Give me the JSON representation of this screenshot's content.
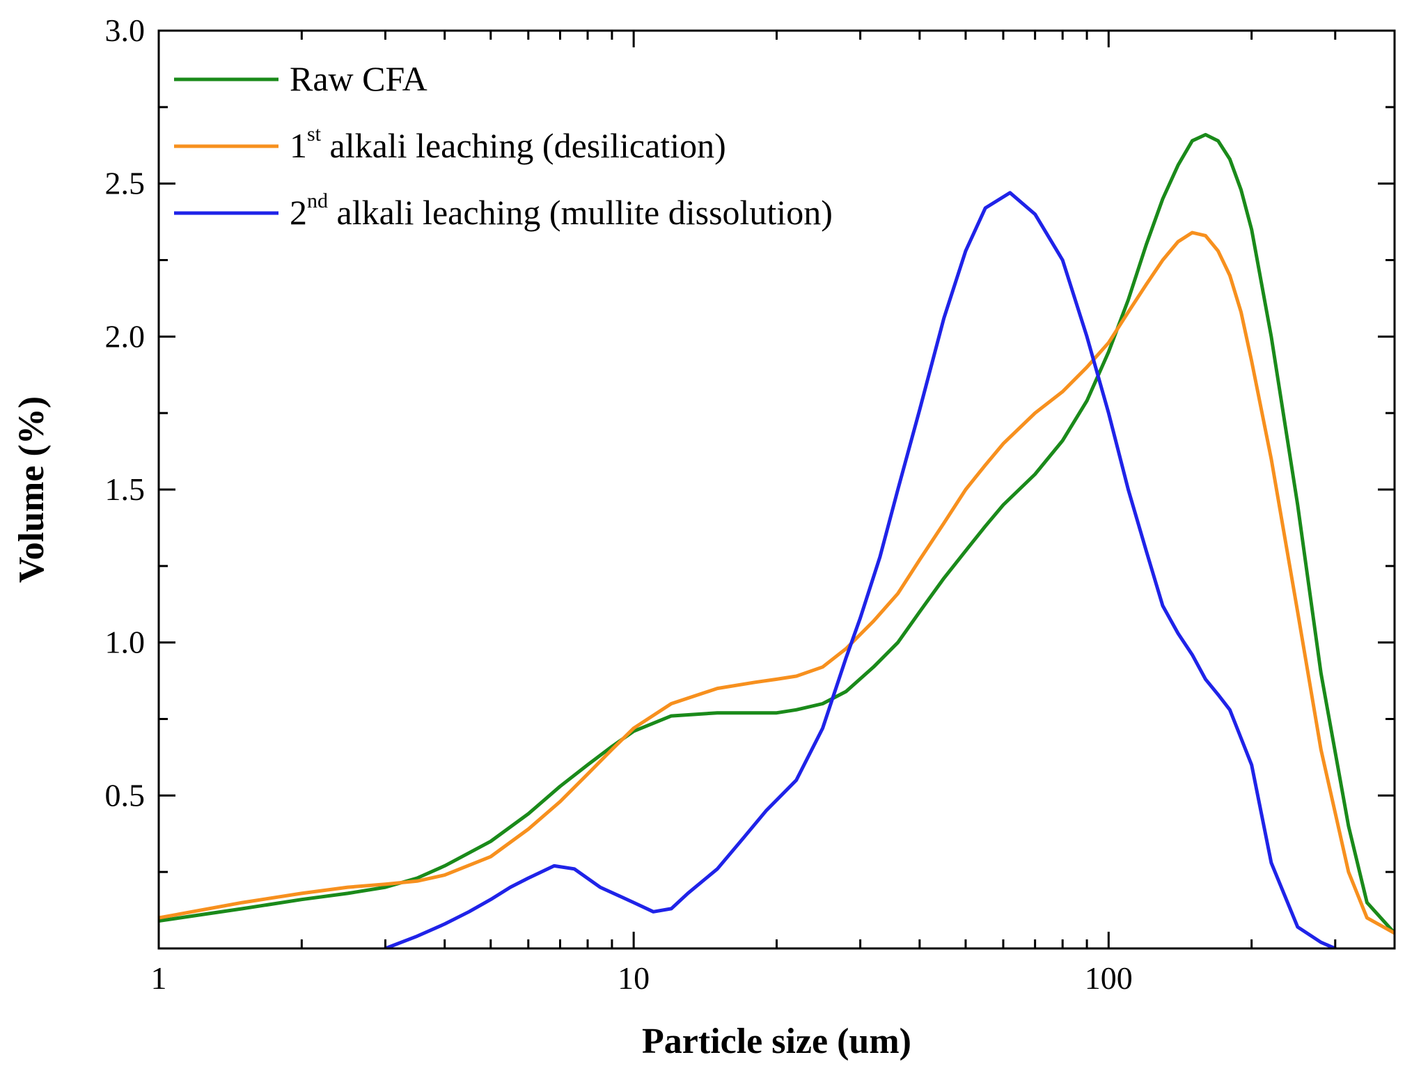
{
  "chart_data": {
    "type": "line",
    "title": "",
    "xlabel": "Particle size (um)",
    "ylabel": "Volume (%)",
    "xscale": "log",
    "xlim": [
      1,
      400
    ],
    "ylim": [
      0,
      3.0
    ],
    "xticks": [
      1,
      10,
      100
    ],
    "xtick_labels": [
      "1",
      "10",
      "100"
    ],
    "yticks": [
      0.5,
      1.0,
      1.5,
      2.0,
      2.5,
      3.0
    ],
    "ytick_labels": [
      "0.5",
      "1.0",
      "1.5",
      "2.0",
      "2.5",
      "3.0"
    ],
    "grid": false,
    "legend_position": "top-left",
    "series": [
      {
        "name": "Raw CFA",
        "legend_main": "",
        "legend_sup": "",
        "legend_rest": "Raw CFA",
        "color": "#1a8a1a",
        "x": [
          1,
          1.5,
          2,
          2.5,
          3,
          3.5,
          4,
          5,
          6,
          7,
          8,
          9,
          10,
          12,
          15,
          18,
          20,
          22,
          25,
          28,
          32,
          36,
          40,
          45,
          50,
          55,
          60,
          70,
          80,
          90,
          100,
          110,
          120,
          130,
          140,
          150,
          160,
          170,
          180,
          190,
          200,
          220,
          250,
          280,
          320,
          350,
          400
        ],
        "y": [
          0.09,
          0.13,
          0.16,
          0.18,
          0.2,
          0.23,
          0.27,
          0.35,
          0.44,
          0.53,
          0.6,
          0.66,
          0.71,
          0.76,
          0.77,
          0.77,
          0.77,
          0.78,
          0.8,
          0.84,
          0.92,
          1.0,
          1.1,
          1.21,
          1.3,
          1.38,
          1.45,
          1.55,
          1.66,
          1.79,
          1.95,
          2.12,
          2.3,
          2.45,
          2.56,
          2.64,
          2.66,
          2.64,
          2.58,
          2.48,
          2.35,
          2.0,
          1.45,
          0.9,
          0.4,
          0.15,
          0.05
        ]
      },
      {
        "name": "1st alkali leaching (desilication)",
        "legend_main": "1",
        "legend_sup": "st",
        "legend_rest": " alkali leaching (desilication)",
        "color": "#f7901e",
        "x": [
          1,
          1.5,
          2,
          2.5,
          3,
          3.5,
          4,
          5,
          6,
          7,
          8,
          9,
          10,
          12,
          15,
          18,
          20,
          22,
          25,
          28,
          32,
          36,
          40,
          45,
          50,
          55,
          60,
          70,
          80,
          90,
          100,
          110,
          120,
          130,
          140,
          150,
          160,
          170,
          180,
          190,
          200,
          220,
          250,
          280,
          320,
          350,
          400
        ],
        "y": [
          0.1,
          0.15,
          0.18,
          0.2,
          0.21,
          0.22,
          0.24,
          0.3,
          0.39,
          0.48,
          0.57,
          0.65,
          0.72,
          0.8,
          0.85,
          0.87,
          0.88,
          0.89,
          0.92,
          0.98,
          1.07,
          1.16,
          1.27,
          1.39,
          1.5,
          1.58,
          1.65,
          1.75,
          1.82,
          1.9,
          1.98,
          2.08,
          2.17,
          2.25,
          2.31,
          2.34,
          2.33,
          2.28,
          2.2,
          2.08,
          1.92,
          1.6,
          1.1,
          0.65,
          0.25,
          0.1,
          0.05
        ]
      },
      {
        "name": "2nd alkali leaching (mullite dissolution)",
        "legend_main": "2",
        "legend_sup": "nd",
        "legend_rest": " alkali leaching (mullite dissolution)",
        "color": "#1f23e8",
        "x": [
          3,
          3.5,
          4,
          4.5,
          5,
          5.5,
          6,
          6.8,
          7.5,
          8.5,
          10,
          11,
          12,
          13,
          15,
          17,
          19,
          22,
          25,
          28,
          30,
          33,
          36,
          40,
          45,
          50,
          55,
          62,
          70,
          80,
          90,
          100,
          110,
          120,
          130,
          140,
          150,
          160,
          170,
          180,
          200,
          220,
          250,
          280,
          300
        ],
        "y": [
          0.0,
          0.04,
          0.08,
          0.12,
          0.16,
          0.2,
          0.23,
          0.27,
          0.26,
          0.2,
          0.15,
          0.12,
          0.13,
          0.18,
          0.26,
          0.36,
          0.45,
          0.55,
          0.72,
          0.95,
          1.08,
          1.28,
          1.5,
          1.76,
          2.06,
          2.28,
          2.42,
          2.47,
          2.4,
          2.25,
          2.0,
          1.75,
          1.5,
          1.3,
          1.12,
          1.03,
          0.96,
          0.88,
          0.83,
          0.78,
          0.6,
          0.28,
          0.07,
          0.02,
          0.0
        ]
      }
    ]
  }
}
